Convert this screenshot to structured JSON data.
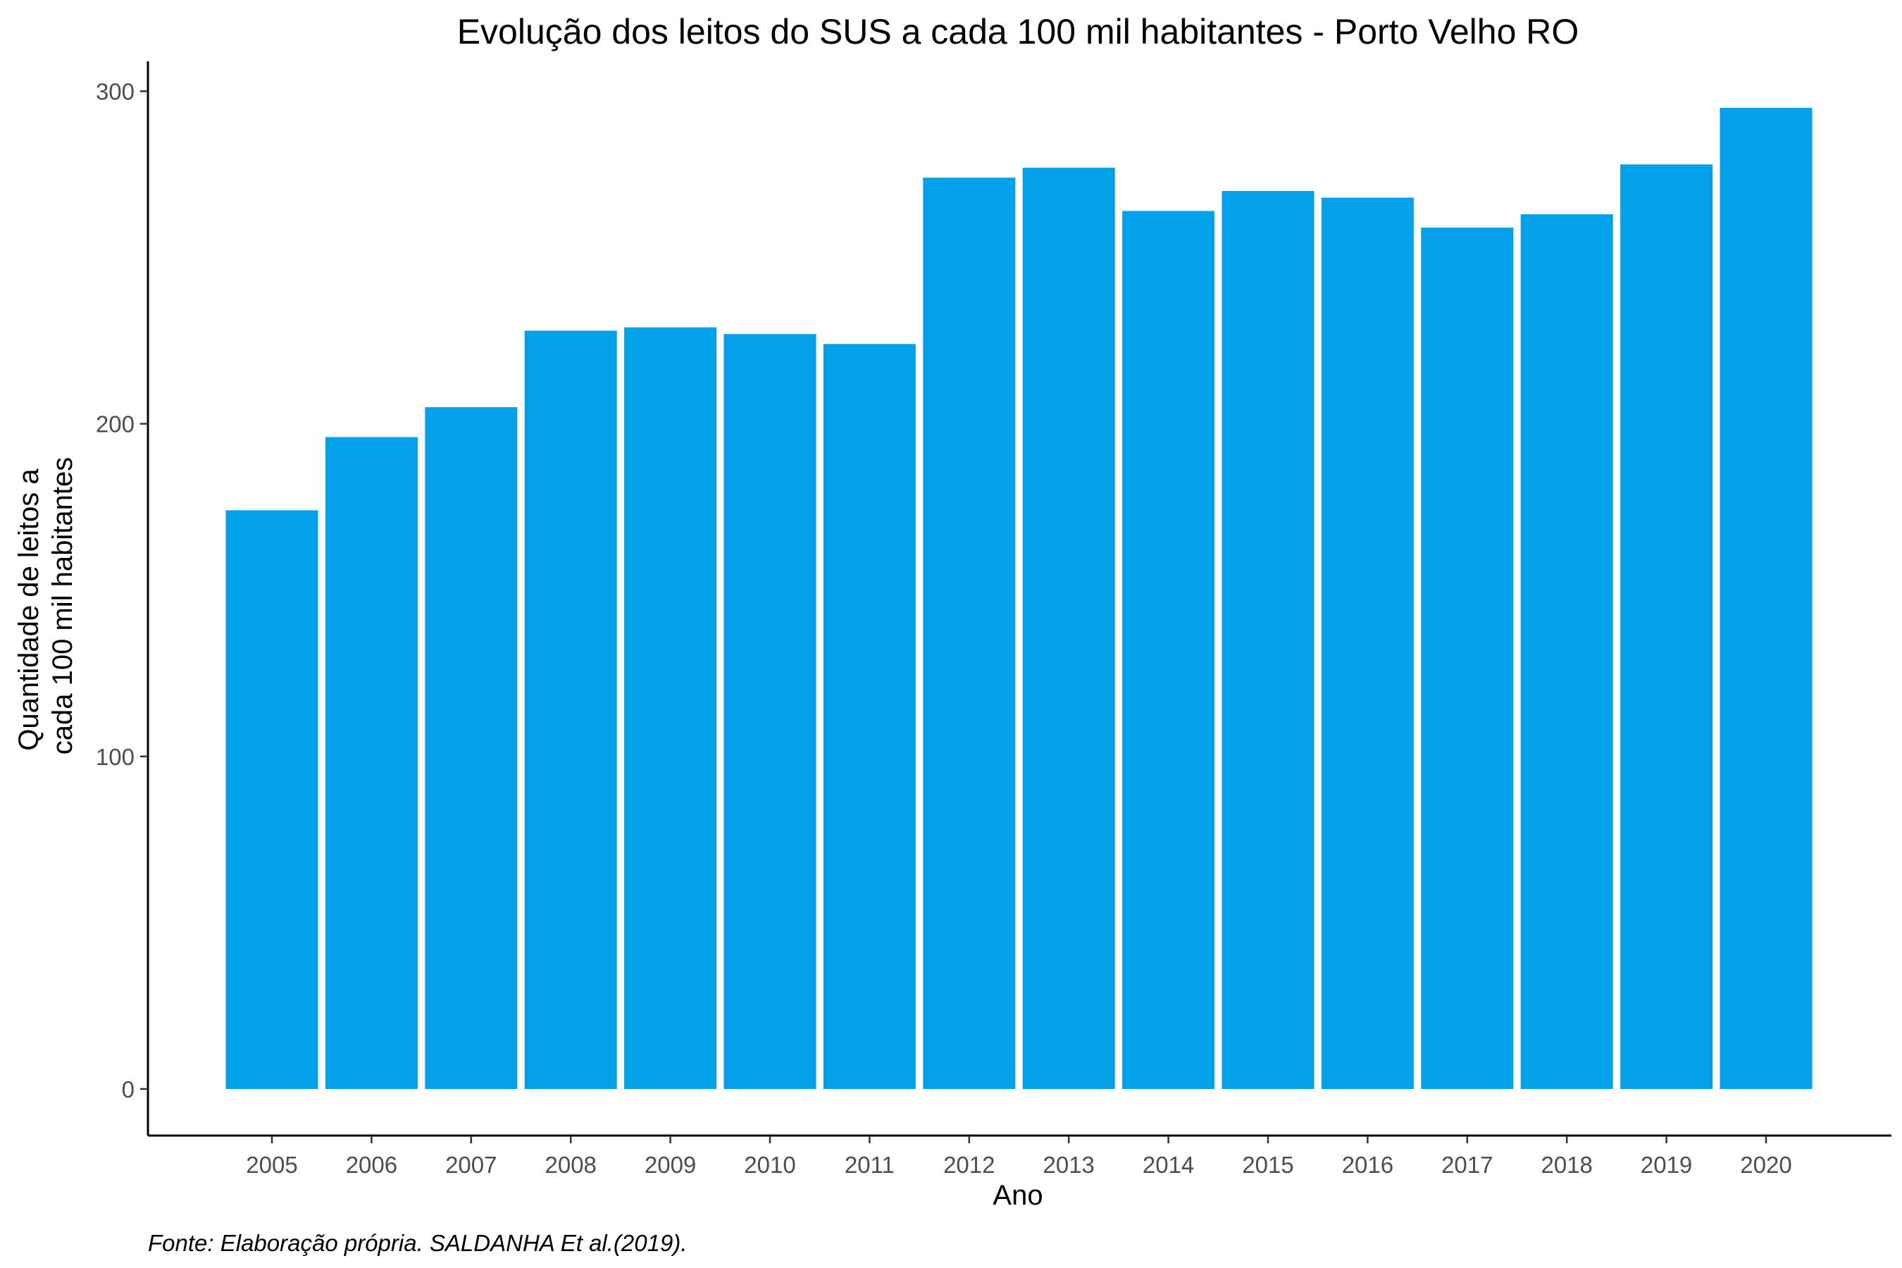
{
  "chart_data": {
    "type": "bar",
    "title": "Evolução dos leitos do SUS a cada 100 mil habitantes -  Porto Velho RO",
    "xlabel": "Ano",
    "ylabel": [
      "Quantidade de leitos a",
      "cada 100 mil habitantes"
    ],
    "caption": "Fonte: Elaboração própria. SALDANHA Et al.(2019).",
    "categories": [
      "2005",
      "2006",
      "2007",
      "2008",
      "2009",
      "2010",
      "2011",
      "2012",
      "2013",
      "2014",
      "2015",
      "2016",
      "2017",
      "2018",
      "2019",
      "2020"
    ],
    "values": [
      174,
      196,
      205,
      228,
      229,
      227,
      224,
      274,
      277,
      264,
      270,
      268,
      259,
      263,
      278,
      295
    ],
    "ylim": [
      -14,
      309
    ],
    "yticks": [
      0,
      100,
      200,
      300
    ],
    "ytick_labels": [
      "0",
      "100",
      "200",
      "300"
    ],
    "grid": false,
    "legend": "none",
    "bar_color": "#03a1ea"
  }
}
